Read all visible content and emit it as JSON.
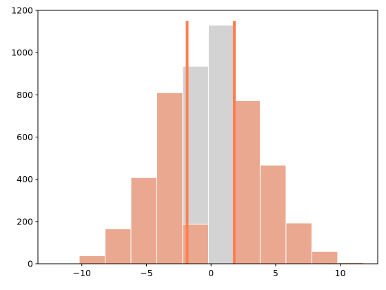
{
  "chart_data": {
    "type": "histogram",
    "bins": [
      -10.2,
      -8.2,
      -6.2,
      -4.2,
      -2.2,
      -0.2,
      1.8,
      3.8,
      5.8,
      7.8,
      9.8,
      11.8
    ],
    "series": [
      {
        "color": "#d3d3d3",
        "values": [
          38,
          165,
          408,
          810,
          935,
          1130,
          773,
          467,
          193,
          58,
          5
        ]
      },
      {
        "color": "#e9a88f",
        "values": [
          38,
          165,
          408,
          810,
          187,
          0,
          773,
          467,
          193,
          58,
          5
        ]
      }
    ],
    "vlines": {
      "x": [
        -1.85,
        1.8
      ],
      "ymax": 1150,
      "color": "#ff7f50"
    },
    "xlim": [
      -13.4,
      12.9
    ],
    "ylim": [
      0,
      1200
    ],
    "xticks": [
      {
        "value": -10,
        "label": "−10"
      },
      {
        "value": -5,
        "label": "−5"
      },
      0,
      5,
      10
    ],
    "yticks": [
      0,
      200,
      400,
      600,
      800,
      1000,
      1200
    ]
  }
}
